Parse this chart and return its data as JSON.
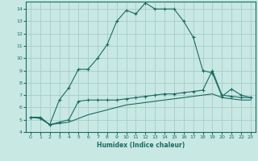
{
  "title": "",
  "xlabel": "Humidex (Indice chaleur)",
  "bg_color": "#c8e8e4",
  "grid_color": "#a8ccc8",
  "line_color": "#1a6b60",
  "xlim": [
    -0.5,
    23.5
  ],
  "ylim": [
    4,
    14.6
  ],
  "xticks": [
    0,
    1,
    2,
    3,
    4,
    5,
    6,
    7,
    8,
    9,
    10,
    11,
    12,
    13,
    14,
    15,
    16,
    17,
    18,
    19,
    20,
    21,
    22,
    23
  ],
  "yticks": [
    4,
    5,
    6,
    7,
    8,
    9,
    10,
    11,
    12,
    13,
    14
  ],
  "series1_x": [
    0,
    1,
    2,
    3,
    4,
    5,
    6,
    7,
    8,
    9,
    10,
    11,
    12,
    13,
    14,
    15,
    16,
    17,
    18,
    19,
    20,
    21,
    22,
    23
  ],
  "series1_y": [
    5.2,
    5.1,
    4.6,
    6.6,
    7.6,
    9.1,
    9.1,
    10.0,
    11.1,
    13.0,
    13.9,
    13.6,
    14.5,
    14.0,
    14.0,
    14.0,
    13.0,
    11.7,
    9.0,
    8.8,
    6.9,
    7.5,
    7.0,
    6.8
  ],
  "series2_x": [
    0,
    1,
    2,
    3,
    4,
    5,
    6,
    7,
    8,
    9,
    10,
    11,
    12,
    13,
    14,
    15,
    16,
    17,
    18,
    19,
    20,
    21,
    22,
    23
  ],
  "series2_y": [
    5.2,
    5.2,
    4.6,
    4.8,
    5.0,
    6.5,
    6.6,
    6.6,
    6.6,
    6.6,
    6.7,
    6.8,
    6.9,
    7.0,
    7.1,
    7.1,
    7.2,
    7.3,
    7.4,
    9.0,
    7.0,
    6.9,
    6.8,
    6.8
  ],
  "series3_x": [
    0,
    1,
    2,
    3,
    4,
    5,
    6,
    7,
    8,
    9,
    10,
    11,
    12,
    13,
    14,
    15,
    16,
    17,
    18,
    19,
    20,
    21,
    22,
    23
  ],
  "series3_y": [
    5.2,
    5.2,
    4.6,
    4.7,
    4.8,
    5.1,
    5.4,
    5.6,
    5.8,
    6.0,
    6.2,
    6.3,
    6.4,
    6.5,
    6.6,
    6.7,
    6.8,
    6.9,
    7.0,
    7.1,
    6.8,
    6.7,
    6.6,
    6.6
  ]
}
